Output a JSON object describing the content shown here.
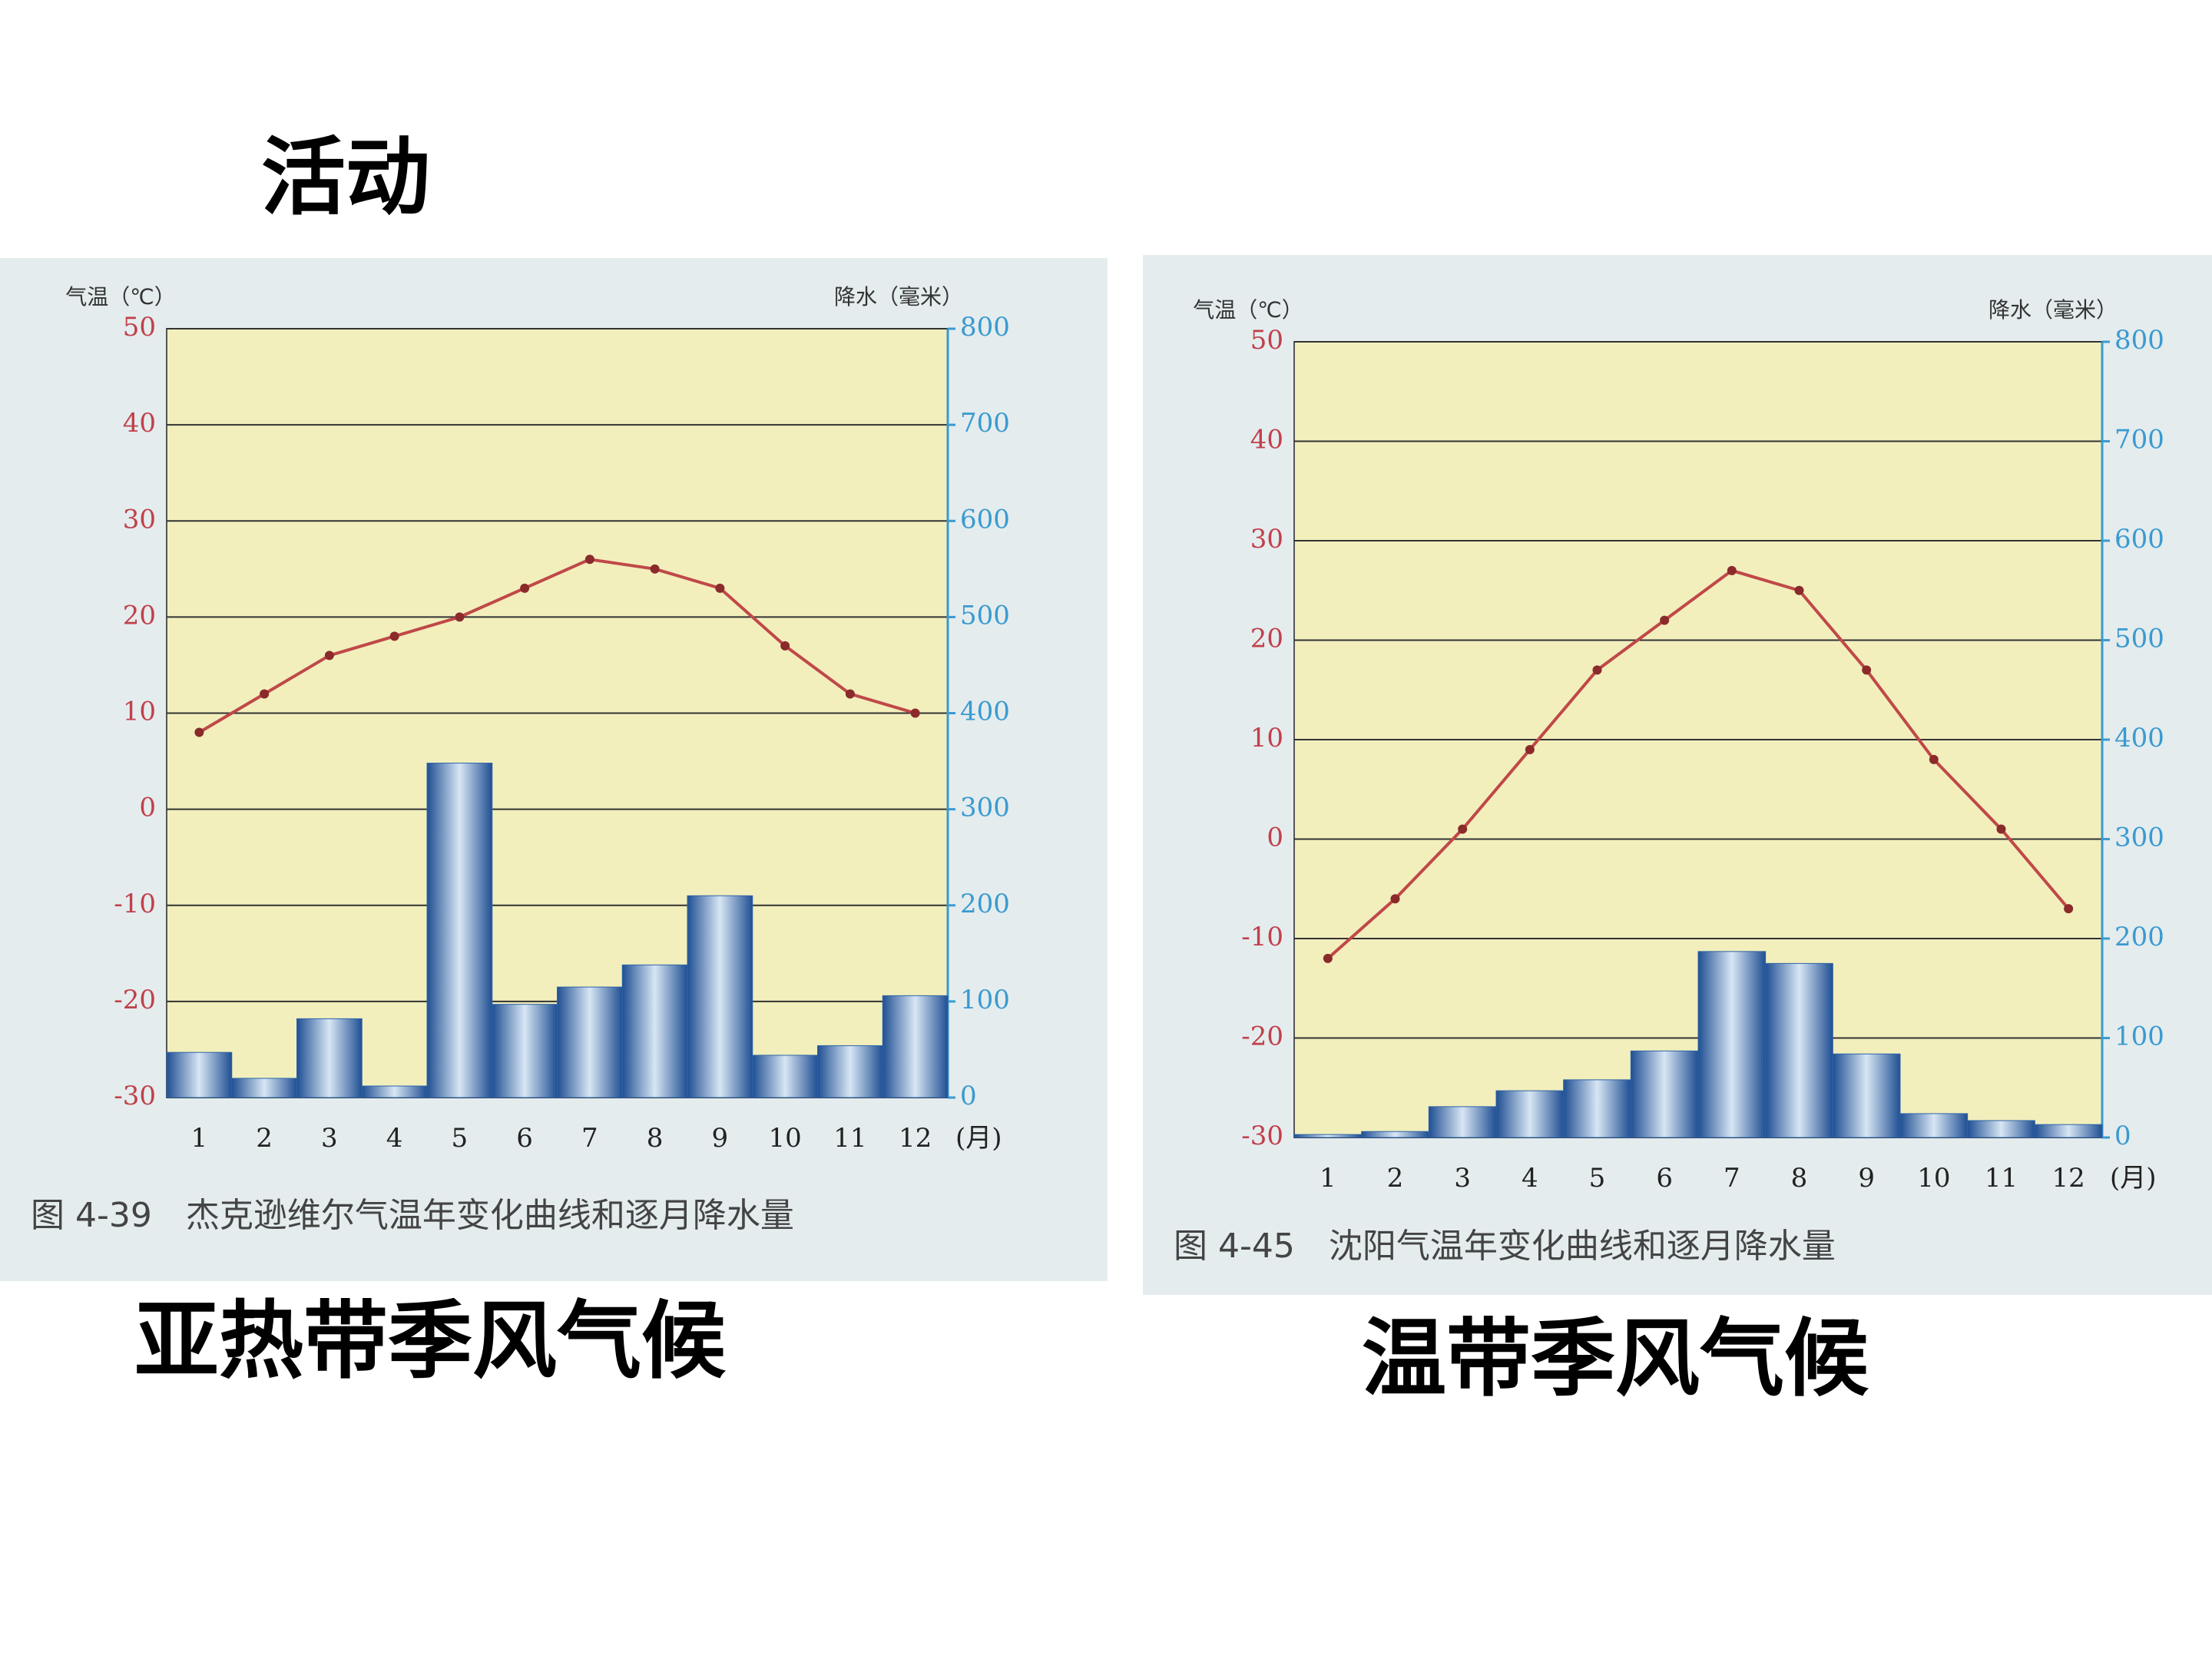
{
  "title": "活动",
  "chart_data": [
    {
      "type": "climate",
      "caption": "图 4-39　杰克逊维尔气温年变化曲线和逐月降水量",
      "label": "亚热带季风气候",
      "ylabel": "气温（℃）",
      "y2label": "降水（毫米）",
      "xlabel": "(月)",
      "categories": [
        "1",
        "2",
        "3",
        "4",
        "5",
        "6",
        "7",
        "8",
        "9",
        "10",
        "11",
        "12"
      ],
      "series": [
        {
          "kind": "bar",
          "axis": "y2",
          "color": "#2d64a8",
          "values": [
            47,
            20,
            82,
            12,
            348,
            97,
            115,
            138,
            210,
            44,
            54,
            106
          ]
        },
        {
          "kind": "line",
          "axis": "y",
          "color": "#c04848",
          "values": [
            8,
            12,
            16,
            18,
            20,
            23,
            26,
            25,
            23,
            17,
            12,
            10
          ]
        }
      ],
      "ylim": [
        -30,
        50
      ],
      "yticks": [
        -30,
        -20,
        -10,
        0,
        10,
        20,
        30,
        40,
        50
      ],
      "y2lim": [
        0,
        800
      ],
      "y2ticks": [
        0,
        100,
        200,
        300,
        400,
        500,
        600,
        700,
        800
      ],
      "grid": true
    },
    {
      "type": "climate",
      "caption": "图 4-45　沈阳气温年变化曲线和逐月降水量",
      "label": "温带季风气候",
      "ylabel": "气温（℃）",
      "y2label": "降水（毫米）",
      "xlabel": "(月)",
      "categories": [
        "1",
        "2",
        "3",
        "4",
        "5",
        "6",
        "7",
        "8",
        "9",
        "10",
        "11",
        "12"
      ],
      "series": [
        {
          "kind": "bar",
          "axis": "y2",
          "color": "#2d64a8",
          "values": [
            3,
            6,
            31,
            47,
            58,
            87,
            187,
            175,
            84,
            24,
            17,
            13
          ]
        },
        {
          "kind": "line",
          "axis": "y",
          "color": "#c04848",
          "values": [
            -12,
            -6,
            1,
            9,
            17,
            22,
            27,
            25,
            17,
            8,
            1,
            -7
          ]
        }
      ],
      "ylim": [
        -30,
        50
      ],
      "yticks": [
        -30,
        -20,
        -10,
        0,
        10,
        20,
        30,
        40,
        50
      ],
      "y2lim": [
        0,
        800
      ],
      "y2ticks": [
        0,
        100,
        200,
        300,
        400,
        500,
        600,
        700,
        800
      ],
      "grid": true
    }
  ]
}
